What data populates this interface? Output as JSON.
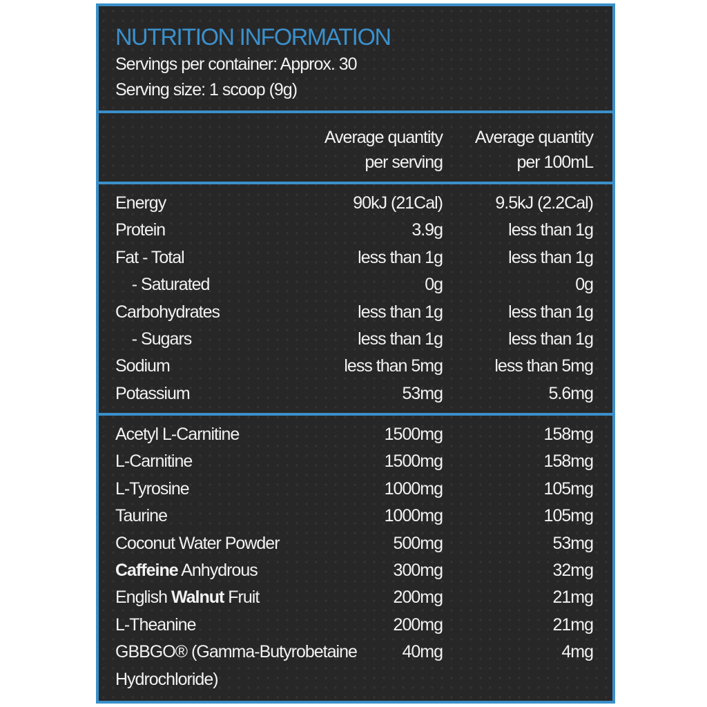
{
  "header": {
    "title": "NUTRITION INFORMATION",
    "servings_per_container": "Servings per container: Approx. 30",
    "serving_size": "Serving size: 1 scoop (9g)"
  },
  "columns": {
    "per_serving": [
      "Average quantity",
      "per serving"
    ],
    "per_100ml": [
      "Average quantity",
      "per 100mL"
    ]
  },
  "colors": {
    "accent": "#3b8fc9",
    "background": "#272727",
    "text": "#f2f2f2"
  },
  "nutrients": [
    {
      "name": [
        {
          "text": "Energy"
        }
      ],
      "per_serving": "90kJ (21Cal)",
      "per_100ml": "9.5kJ (2.2Cal)"
    },
    {
      "name": [
        {
          "text": "Protein"
        }
      ],
      "per_serving": "3.9g",
      "per_100ml": "less than 1g"
    },
    {
      "name": [
        {
          "text": "Fat - Total"
        }
      ],
      "per_serving": "less than 1g",
      "per_100ml": "less than 1g"
    },
    {
      "name": [
        {
          "text": "    - Saturated"
        }
      ],
      "per_serving": "0g",
      "per_100ml": "0g"
    },
    {
      "name": [
        {
          "text": "Carbohydrates"
        }
      ],
      "per_serving": "less than 1g",
      "per_100ml": "less than 1g"
    },
    {
      "name": [
        {
          "text": "    - Sugars"
        }
      ],
      "per_serving": "less than 1g",
      "per_100ml": "less than 1g"
    },
    {
      "name": [
        {
          "text": "Sodium"
        }
      ],
      "per_serving": "less than 5mg",
      "per_100ml": "less than 5mg"
    },
    {
      "name": [
        {
          "text": "Potassium"
        }
      ],
      "per_serving": "53mg",
      "per_100ml": "5.6mg"
    }
  ],
  "ingredients": [
    {
      "name": [
        {
          "text": "Acetyl L-Carnitine"
        }
      ],
      "per_serving": "1500mg",
      "per_100ml": "158mg"
    },
    {
      "name": [
        {
          "text": "L-Carnitine"
        }
      ],
      "per_serving": "1500mg",
      "per_100ml": "158mg"
    },
    {
      "name": [
        {
          "text": "L-Tyrosine"
        }
      ],
      "per_serving": "1000mg",
      "per_100ml": "105mg"
    },
    {
      "name": [
        {
          "text": "Taurine"
        }
      ],
      "per_serving": "1000mg",
      "per_100ml": "105mg"
    },
    {
      "name": [
        {
          "text": "Coconut Water Powder"
        }
      ],
      "per_serving": "500mg",
      "per_100ml": "53mg"
    },
    {
      "name": [
        {
          "text": "Caffeine",
          "bold": true
        },
        {
          "text": " Anhydrous"
        }
      ],
      "per_serving": "300mg",
      "per_100ml": "32mg"
    },
    {
      "name": [
        {
          "text": "English "
        },
        {
          "text": "Walnut",
          "bold": true
        },
        {
          "text": " Fruit"
        }
      ],
      "per_serving": "200mg",
      "per_100ml": "21mg"
    },
    {
      "name": [
        {
          "text": "L-Theanine"
        }
      ],
      "per_serving": "200mg",
      "per_100ml": "21mg"
    },
    {
      "name": [
        {
          "text": "GBBGO® (Gamma-Butyrobetaine"
        }
      ],
      "per_serving": "40mg",
      "per_100ml": "4mg"
    },
    {
      "name": [
        {
          "text": "Hydrochloride)"
        }
      ],
      "per_serving": "",
      "per_100ml": ""
    }
  ]
}
